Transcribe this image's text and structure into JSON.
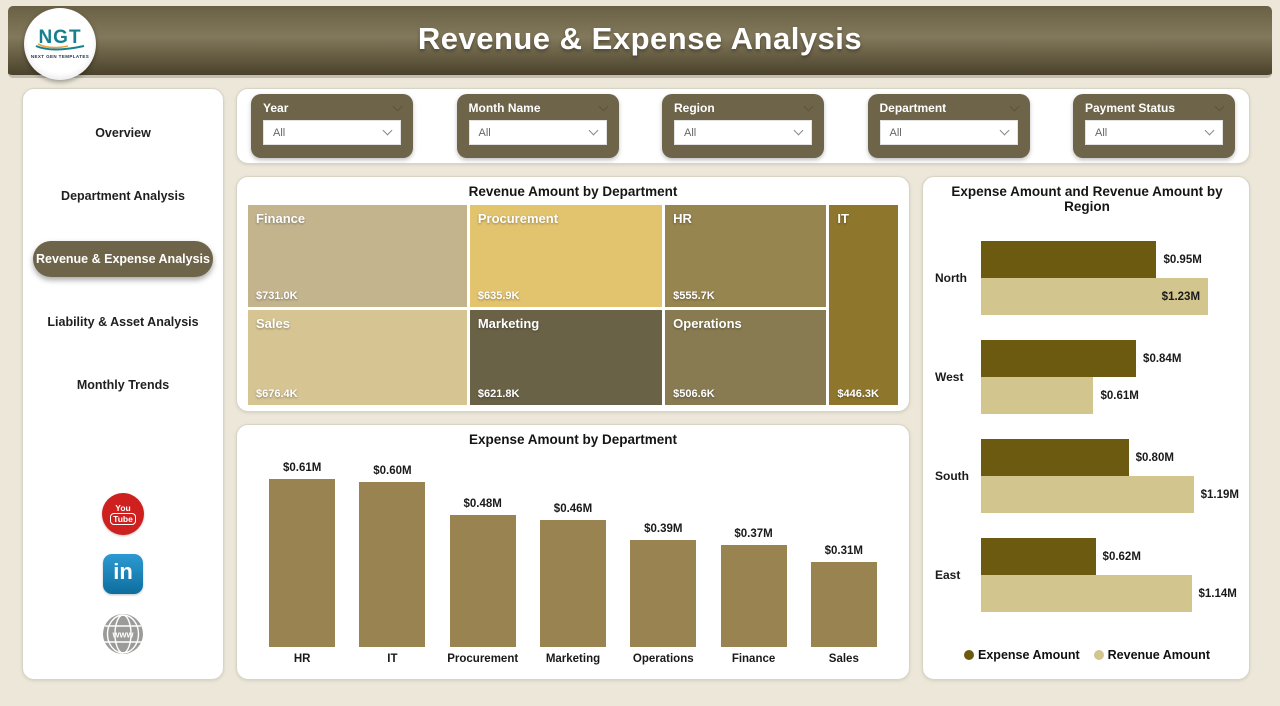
{
  "header": {
    "title": "Revenue & Expense Analysis",
    "logo": {
      "text": "NGT",
      "subtext": "NEXT GEN TEMPLATES"
    }
  },
  "sidebar": {
    "items": [
      {
        "label": "Overview",
        "active": false
      },
      {
        "label": "Department Analysis",
        "active": false
      },
      {
        "label": "Revenue & Expense Analysis",
        "active": true
      },
      {
        "label": "Liability & Asset Analysis",
        "active": false
      },
      {
        "label": "Monthly Trends",
        "active": false
      }
    ],
    "social": {
      "youtube": {
        "line1": "You",
        "line2": "Tube",
        "color": "#cd201f"
      },
      "linkedin": {
        "text": "in",
        "color": "#0e76a8"
      },
      "website": {
        "text": "www",
        "color": "#9b9b99"
      }
    }
  },
  "filters": [
    {
      "label": "Year",
      "value": "All"
    },
    {
      "label": "Month Name",
      "value": "All"
    },
    {
      "label": "Region",
      "value": "All"
    },
    {
      "label": "Department",
      "value": "All"
    },
    {
      "label": "Payment Status",
      "value": "All"
    }
  ],
  "chart_data": [
    {
      "type": "treemap",
      "title": "Revenue Amount by Department",
      "items": [
        {
          "label": "Finance",
          "value": 731.0,
          "value_label": "$731.0K",
          "color": "#c3b48e"
        },
        {
          "label": "Procurement",
          "value": 635.9,
          "value_label": "$635.9K",
          "color": "#e2c36e"
        },
        {
          "label": "HR",
          "value": 555.7,
          "value_label": "$555.7K",
          "color": "#97854f"
        },
        {
          "label": "IT",
          "value": 446.3,
          "value_label": "$446.3K",
          "color": "#8e762c"
        },
        {
          "label": "Sales",
          "value": 676.4,
          "value_label": "$676.4K",
          "color": "#d6c492"
        },
        {
          "label": "Marketing",
          "value": 621.8,
          "value_label": "$621.8K",
          "color": "#6a6246"
        },
        {
          "label": "Operations",
          "value": 506.6,
          "value_label": "$506.6K",
          "color": "#887b52"
        }
      ]
    },
    {
      "type": "bar",
      "title": "Expense Amount by Department",
      "categories": [
        "HR",
        "IT",
        "Procurement",
        "Marketing",
        "Operations",
        "Finance",
        "Sales"
      ],
      "values": [
        0.61,
        0.6,
        0.48,
        0.46,
        0.39,
        0.37,
        0.31
      ],
      "labels": [
        "$0.61M",
        "$0.60M",
        "$0.48M",
        "$0.46M",
        "$0.39M",
        "$0.37M",
        "$0.31M"
      ],
      "bar_color": "#998350",
      "ylim": [
        0,
        0.65
      ],
      "grid": false
    },
    {
      "type": "grouped-horizontal-bar",
      "title": "Expense Amount and Revenue Amount by Region",
      "categories": [
        "North",
        "West",
        "South",
        "East"
      ],
      "series": [
        {
          "name": "Expense Amount",
          "color": "#6b5a0f",
          "values": [
            0.95,
            0.84,
            0.8,
            0.62
          ],
          "labels": [
            "$0.95M",
            "$0.84M",
            "$0.80M",
            "$0.62M"
          ]
        },
        {
          "name": "Revenue Amount",
          "color": "#d2c58e",
          "values": [
            1.23,
            0.61,
            1.19,
            1.14
          ],
          "labels": [
            "$1.23M",
            "$0.61M",
            "$1.19M",
            "$1.14M"
          ]
        }
      ],
      "xlim": [
        0,
        1.23
      ],
      "legend_position": "bottom",
      "grid": false
    }
  ]
}
